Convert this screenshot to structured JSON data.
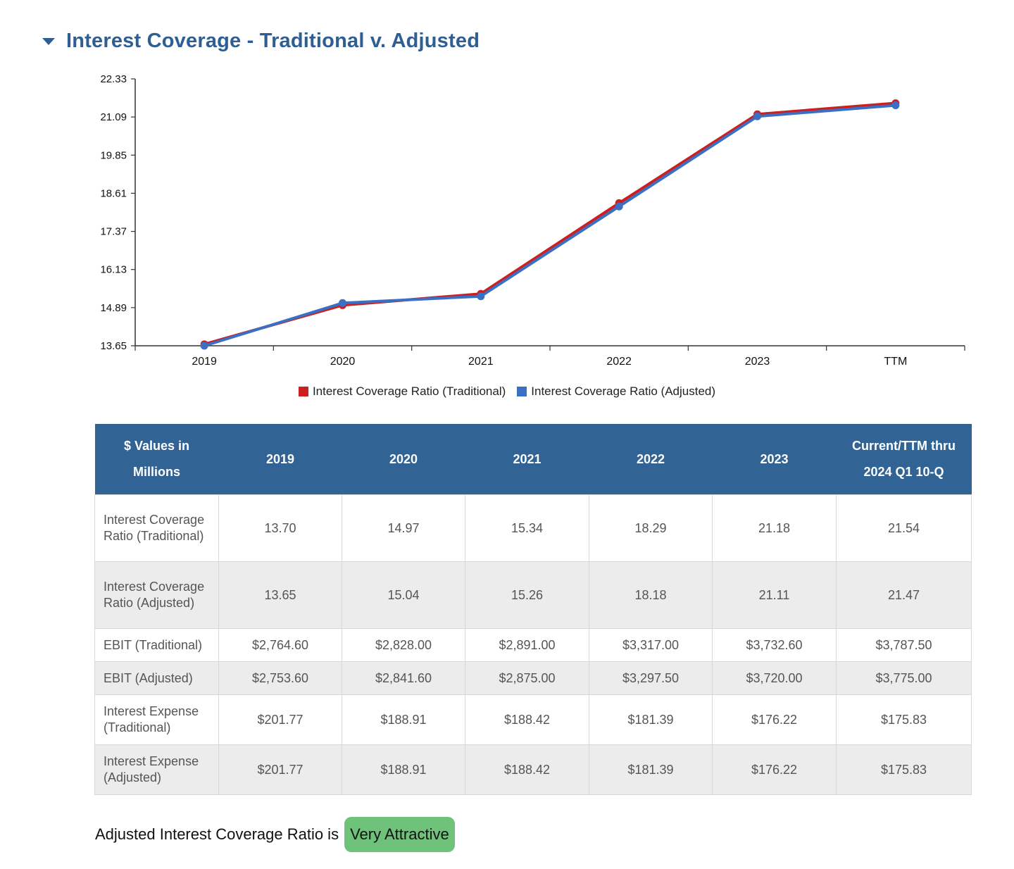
{
  "section": {
    "title": "Interest Coverage - Traditional v. Adjusted"
  },
  "chart_data": {
    "type": "line",
    "categories": [
      "2019",
      "2020",
      "2021",
      "2022",
      "2023",
      "TTM"
    ],
    "y_ticks": [
      "13.65",
      "14.89",
      "16.13",
      "17.37",
      "18.61",
      "19.85",
      "21.09",
      "22.33"
    ],
    "ylim": [
      13.65,
      22.33
    ],
    "series": [
      {
        "name": "Interest Coverage Ratio (Traditional)",
        "color": "#cc1f1f",
        "values": [
          13.7,
          14.97,
          15.34,
          18.29,
          21.18,
          21.54
        ]
      },
      {
        "name": "Interest Coverage Ratio (Adjusted)",
        "color": "#3b6fc4",
        "values": [
          13.65,
          15.04,
          15.26,
          18.18,
          21.11,
          21.47
        ]
      }
    ],
    "legend_position": "bottom",
    "grid": false
  },
  "table": {
    "header_col0": "$ Values in Millions",
    "headers": [
      "2019",
      "2020",
      "2021",
      "2022",
      "2023",
      "Current/TTM thru 2024 Q1 10-Q"
    ],
    "rows": [
      {
        "label": "Interest Coverage Ratio (Traditional)",
        "values": [
          "13.70",
          "14.97",
          "15.34",
          "18.29",
          "21.18",
          "21.54"
        ]
      },
      {
        "label": "Interest Coverage Ratio (Adjusted)",
        "values": [
          "13.65",
          "15.04",
          "15.26",
          "18.18",
          "21.11",
          "21.47"
        ]
      },
      {
        "label": "EBIT (Traditional)",
        "values": [
          "$2,764.60",
          "$2,828.00",
          "$2,891.00",
          "$3,317.00",
          "$3,732.60",
          "$3,787.50"
        ]
      },
      {
        "label": "EBIT (Adjusted)",
        "values": [
          "$2,753.60",
          "$2,841.60",
          "$2,875.00",
          "$3,297.50",
          "$3,720.00",
          "$3,775.00"
        ]
      },
      {
        "label": "Interest Expense (Traditional)",
        "values": [
          "$201.77",
          "$188.91",
          "$188.42",
          "$181.39",
          "$176.22",
          "$175.83"
        ]
      },
      {
        "label": "Interest Expense (Adjusted)",
        "values": [
          "$201.77",
          "$188.91",
          "$188.42",
          "$181.39",
          "$176.22",
          "$175.83"
        ]
      }
    ]
  },
  "rating": {
    "text": "Adjusted Interest Coverage Ratio is",
    "badge": "Very Attractive",
    "badge_color": "#6fc27a"
  }
}
